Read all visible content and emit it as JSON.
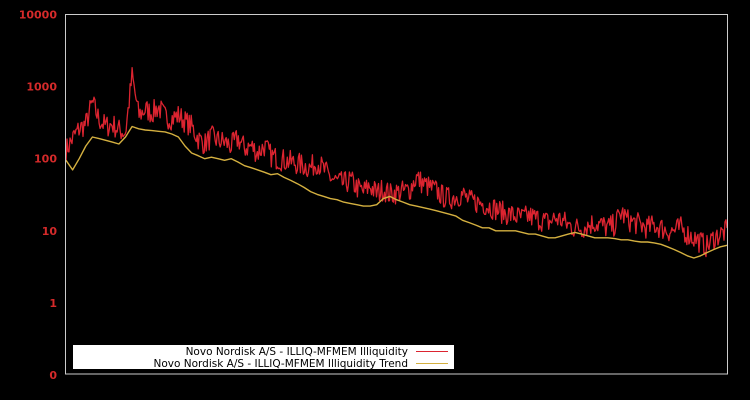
{
  "chart_data": {
    "type": "line",
    "title": "",
    "xlabel": "",
    "ylabel": "",
    "yscale": "log",
    "ylim": [
      0.1,
      10000
    ],
    "y_ticks": [
      {
        "label": "10000",
        "value": 10000
      },
      {
        "label": "1000",
        "value": 1000
      },
      {
        "label": "100",
        "value": 100
      },
      {
        "label": "10",
        "value": 10
      },
      {
        "label": "1",
        "value": 1
      },
      {
        "label": "0",
        "value": 0.1
      }
    ],
    "x_ticks": [],
    "grid": false,
    "legend_position": "lower-left",
    "background": "#000000",
    "frame_color": "#cccccc",
    "tick_color": "#d42a2a",
    "series": [
      {
        "name": "Novo Nordisk A/S - ILLIQ-MFMEM Illiquidity",
        "color": "#dc2430",
        "x": [
          0,
          1,
          2,
          3,
          4,
          5,
          6,
          7,
          8,
          9,
          10,
          11,
          12,
          13,
          14,
          15,
          16,
          17,
          18,
          19,
          20,
          21,
          22,
          23,
          24,
          25,
          26,
          27,
          28,
          29,
          30,
          31,
          32,
          33,
          34,
          35,
          36,
          37,
          38,
          39,
          40,
          41,
          42,
          43,
          44,
          45,
          46,
          47,
          48,
          49,
          50,
          51,
          52,
          53,
          54,
          55,
          56,
          57,
          58,
          59,
          60,
          61,
          62,
          63,
          64,
          65,
          66,
          67,
          68,
          69,
          70,
          71,
          72,
          73,
          74,
          75,
          76,
          77,
          78,
          79,
          80,
          81,
          82,
          83,
          84,
          85,
          86,
          87,
          88,
          89,
          90,
          91,
          92,
          93,
          94,
          95,
          96,
          97,
          98,
          99,
          100
        ],
        "values": [
          130,
          190,
          260,
          300,
          600,
          350,
          280,
          300,
          250,
          230,
          1400,
          400,
          480,
          430,
          520,
          380,
          360,
          400,
          330,
          280,
          190,
          160,
          200,
          180,
          170,
          150,
          190,
          140,
          150,
          120,
          150,
          110,
          100,
          95,
          90,
          85,
          80,
          75,
          90,
          70,
          55,
          48,
          45,
          50,
          40,
          35,
          42,
          33,
          38,
          32,
          34,
          35,
          37,
          55,
          45,
          40,
          36,
          30,
          28,
          30,
          32,
          26,
          25,
          24,
          22,
          20,
          18,
          17,
          16,
          15,
          16,
          15,
          14,
          13,
          15,
          14,
          12,
          11,
          11,
          12,
          13,
          12,
          11,
          12,
          18,
          14,
          13,
          12,
          11,
          12,
          11,
          10,
          10,
          11,
          9,
          8,
          7,
          6,
          8,
          9,
          10
        ],
        "value_ranges_note": "noisy daily series; values are approximate local centers"
      },
      {
        "name": "Novo Nordisk A/S - ILLIQ-MFMEM Illiquidity Trend",
        "color": "#d4b040",
        "x": [
          0,
          1,
          2,
          3,
          4,
          5,
          6,
          7,
          8,
          9,
          10,
          11,
          12,
          13,
          14,
          15,
          16,
          17,
          18,
          19,
          20,
          21,
          22,
          23,
          24,
          25,
          26,
          27,
          28,
          29,
          30,
          31,
          32,
          33,
          34,
          35,
          36,
          37,
          38,
          39,
          40,
          41,
          42,
          43,
          44,
          45,
          46,
          47,
          48,
          49,
          50,
          51,
          52,
          53,
          54,
          55,
          56,
          57,
          58,
          59,
          60,
          61,
          62,
          63,
          64,
          65,
          66,
          67,
          68,
          69,
          70,
          71,
          72,
          73,
          74,
          75,
          76,
          77,
          78,
          79,
          80,
          81,
          82,
          83,
          84,
          85,
          86,
          87,
          88,
          89,
          90,
          91,
          92,
          93,
          94,
          95,
          96,
          97,
          98,
          99,
          100
        ],
        "values": [
          95,
          70,
          100,
          150,
          200,
          190,
          180,
          170,
          160,
          200,
          280,
          260,
          250,
          245,
          240,
          235,
          220,
          200,
          150,
          120,
          110,
          100,
          105,
          100,
          95,
          100,
          90,
          80,
          75,
          70,
          65,
          60,
          62,
          55,
          50,
          45,
          40,
          35,
          32,
          30,
          28,
          27,
          25,
          24,
          23,
          22,
          22,
          23,
          28,
          30,
          27,
          25,
          23,
          22,
          21,
          20,
          19,
          18,
          17,
          16,
          14,
          13,
          12,
          11,
          11,
          10,
          10,
          10,
          10,
          9.5,
          9,
          9,
          8.5,
          8,
          8,
          8.5,
          9,
          9.5,
          9,
          8.5,
          8,
          8,
          8,
          7.8,
          7.5,
          7.5,
          7.2,
          7,
          7,
          6.8,
          6.5,
          6,
          5.5,
          5,
          4.5,
          4.2,
          4.5,
          5,
          5.5,
          6,
          6.3
        ]
      }
    ]
  },
  "legend": {
    "items": [
      {
        "label": "Novo Nordisk A/S - ILLIQ-MFMEM Illiquidity",
        "color": "#dc2430"
      },
      {
        "label": "Novo Nordisk A/S - ILLIQ-MFMEM Illiquidity Trend",
        "color": "#d4b040"
      }
    ]
  }
}
